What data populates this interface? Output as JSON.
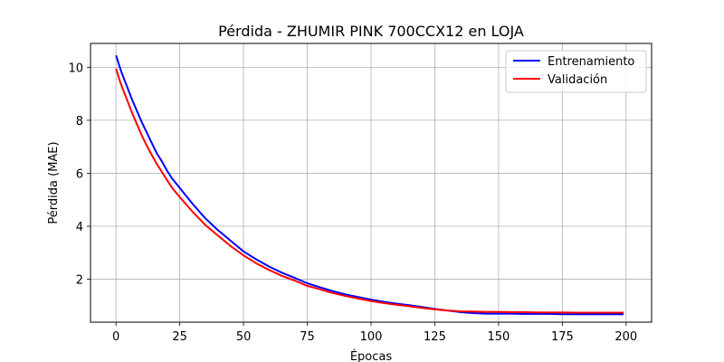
{
  "chart_data": {
    "type": "line",
    "title": "Pérdida - ZHUMIR PINK 700CCX12 en LOJA",
    "xlabel": "Épocas",
    "ylabel": "Pérdida (MAE)",
    "xlim": [
      -10,
      210
    ],
    "ylim": [
      0.38,
      10.9
    ],
    "xticks": [
      0,
      25,
      50,
      75,
      100,
      125,
      150,
      175,
      200
    ],
    "yticks": [
      2,
      4,
      6,
      8,
      10
    ],
    "grid": true,
    "legend_position": "top-right",
    "series": [
      {
        "name": "Entrenamiento",
        "color": "#0000ff",
        "x": [
          0,
          2,
          4,
          6,
          8,
          10,
          12,
          14,
          16,
          18,
          20,
          22,
          25,
          30,
          35,
          40,
          45,
          50,
          55,
          60,
          65,
          70,
          75,
          80,
          85,
          90,
          95,
          100,
          105,
          110,
          115,
          120,
          125,
          130,
          135,
          140,
          145,
          150,
          155,
          160,
          165,
          170,
          175,
          180,
          185,
          190,
          195,
          199
        ],
        "y": [
          10.45,
          9.85,
          9.35,
          8.85,
          8.4,
          7.95,
          7.55,
          7.15,
          6.75,
          6.45,
          6.1,
          5.8,
          5.45,
          4.85,
          4.3,
          3.85,
          3.45,
          3.05,
          2.75,
          2.48,
          2.25,
          2.05,
          1.85,
          1.7,
          1.55,
          1.43,
          1.33,
          1.23,
          1.15,
          1.08,
          1.02,
          0.95,
          0.88,
          0.82,
          0.76,
          0.72,
          0.7,
          0.7,
          0.7,
          0.69,
          0.69,
          0.69,
          0.68,
          0.68,
          0.68,
          0.68,
          0.68,
          0.68
        ]
      },
      {
        "name": "Validación",
        "color": "#ff0000",
        "x": [
          0,
          2,
          4,
          6,
          8,
          10,
          12,
          14,
          16,
          18,
          20,
          22,
          25,
          30,
          35,
          40,
          45,
          50,
          55,
          60,
          65,
          70,
          75,
          80,
          85,
          90,
          95,
          100,
          105,
          110,
          115,
          120,
          125,
          130,
          135,
          140,
          145,
          150,
          155,
          160,
          165,
          170,
          175,
          180,
          185,
          190,
          195,
          199
        ],
        "y": [
          9.95,
          9.35,
          8.85,
          8.35,
          7.9,
          7.45,
          7.05,
          6.7,
          6.35,
          6.05,
          5.75,
          5.45,
          5.1,
          4.55,
          4.05,
          3.65,
          3.25,
          2.9,
          2.6,
          2.35,
          2.13,
          1.95,
          1.75,
          1.62,
          1.48,
          1.37,
          1.27,
          1.18,
          1.1,
          1.04,
          0.98,
          0.92,
          0.86,
          0.82,
          0.79,
          0.78,
          0.77,
          0.77,
          0.76,
          0.76,
          0.75,
          0.75,
          0.75,
          0.74,
          0.74,
          0.74,
          0.74,
          0.74
        ]
      }
    ]
  }
}
